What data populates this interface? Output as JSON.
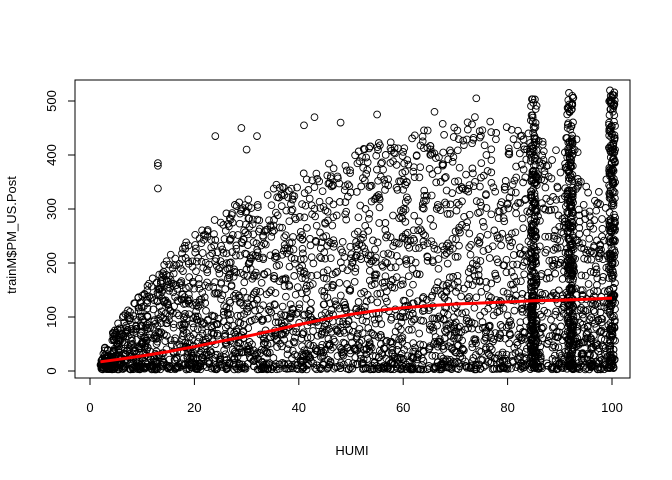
{
  "chart_data": {
    "type": "scatter",
    "title": "",
    "xlabel": "HUMI",
    "ylabel": "trainM$PM_US.Post",
    "xlim": [
      0,
      100
    ],
    "ylim": [
      0,
      520
    ],
    "x_ticks": [
      0,
      20,
      40,
      60,
      80,
      100
    ],
    "y_ticks": [
      0,
      100,
      200,
      300,
      400,
      500
    ],
    "grid": false,
    "legend": "none",
    "point_color": "#000000",
    "point_shape": "open-circle",
    "smooth_line": {
      "color": "#ff0000",
      "x": [
        2,
        5,
        10,
        15,
        20,
        25,
        30,
        35,
        40,
        45,
        50,
        55,
        60,
        65,
        70,
        75,
        80,
        85,
        90,
        95,
        100
      ],
      "y": [
        17,
        21,
        28,
        36,
        45,
        55,
        64,
        75,
        86,
        96,
        105,
        112,
        117,
        121,
        124,
        126,
        128,
        130,
        131,
        133,
        135
      ]
    },
    "point_envelope": {
      "x": [
        2,
        5,
        10,
        15,
        20,
        25,
        30,
        35,
        40,
        45,
        50,
        55,
        60,
        65,
        70,
        75,
        80,
        85,
        88,
        90,
        93,
        96,
        100
      ],
      "y_upper": [
        30,
        80,
        150,
        210,
        250,
        290,
        320,
        340,
        360,
        380,
        400,
        420,
        430,
        450,
        460,
        470,
        450,
        430,
        420,
        400,
        480,
        300,
        400
      ]
    },
    "dense_columns": [
      {
        "x": 85,
        "y_max": 510
      },
      {
        "x": 92,
        "y_max": 515
      },
      {
        "x": 100,
        "y_max": 520
      }
    ],
    "highlight_points": [
      {
        "x": 13,
        "y": 385
      },
      {
        "x": 13,
        "y": 380
      },
      {
        "x": 13,
        "y": 338
      },
      {
        "x": 24,
        "y": 435
      },
      {
        "x": 29,
        "y": 450
      },
      {
        "x": 30,
        "y": 410
      },
      {
        "x": 32,
        "y": 435
      },
      {
        "x": 41,
        "y": 455
      },
      {
        "x": 43,
        "y": 470
      },
      {
        "x": 48,
        "y": 460
      },
      {
        "x": 55,
        "y": 475
      },
      {
        "x": 66,
        "y": 480
      },
      {
        "x": 74,
        "y": 505
      },
      {
        "x": 82,
        "y": 445
      },
      {
        "x": 84,
        "y": 440
      },
      {
        "x": 91,
        "y": 200
      },
      {
        "x": 95,
        "y": 60
      },
      {
        "x": 97,
        "y": 80
      },
      {
        "x": 98,
        "y": 90
      }
    ]
  }
}
